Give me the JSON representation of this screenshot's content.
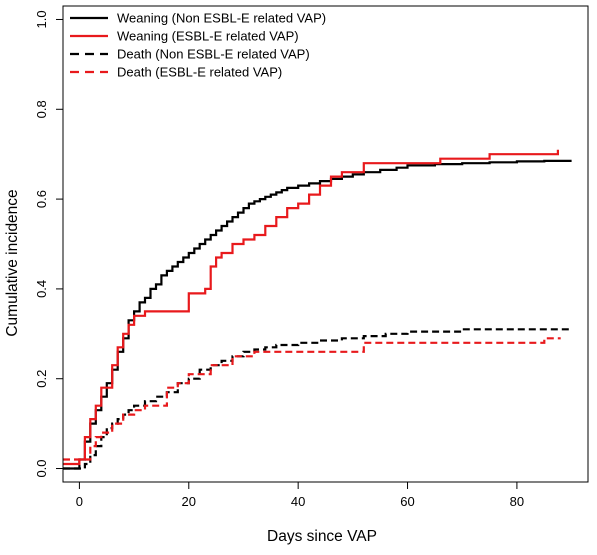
{
  "chart_data": {
    "type": "line",
    "title": "",
    "xlabel": "Days since VAP",
    "ylabel": "Cumulative incidence",
    "xlim": [
      -3,
      93
    ],
    "ylim": [
      -0.03,
      1.03
    ],
    "xticks": [
      0,
      20,
      40,
      60,
      80
    ],
    "yticks": [
      0.0,
      0.2,
      0.4,
      0.6,
      0.8,
      1.0
    ],
    "xtick_labels": [
      "0",
      "20",
      "40",
      "60",
      "80"
    ],
    "ytick_labels": [
      "0.0",
      "0.2",
      "0.4",
      "0.6",
      "0.8",
      "1.0"
    ],
    "grid": false,
    "legend_position": "top-left",
    "step": true,
    "series": [
      {
        "name": "Weaning (Non ESBL-E related VAP)",
        "color": "#000000",
        "dash": "solid",
        "x": [
          -3,
          0,
          1,
          2,
          3,
          4,
          5,
          6,
          7,
          8,
          9,
          10,
          11,
          12,
          13,
          14,
          15,
          16,
          17,
          18,
          19,
          20,
          21,
          22,
          23,
          24,
          25,
          26,
          27,
          28,
          29,
          30,
          31,
          32,
          33,
          34,
          35,
          36,
          37,
          38,
          40,
          42,
          44,
          46,
          48,
          50,
          52,
          55,
          58,
          60,
          65,
          70,
          75,
          80,
          85,
          90
        ],
        "y": [
          0.0,
          0.02,
          0.06,
          0.1,
          0.13,
          0.16,
          0.19,
          0.22,
          0.26,
          0.29,
          0.33,
          0.35,
          0.37,
          0.38,
          0.4,
          0.41,
          0.43,
          0.44,
          0.45,
          0.46,
          0.47,
          0.48,
          0.49,
          0.5,
          0.51,
          0.52,
          0.53,
          0.54,
          0.55,
          0.56,
          0.57,
          0.58,
          0.59,
          0.595,
          0.6,
          0.605,
          0.61,
          0.615,
          0.62,
          0.625,
          0.63,
          0.635,
          0.64,
          0.645,
          0.65,
          0.655,
          0.66,
          0.665,
          0.67,
          0.675,
          0.678,
          0.68,
          0.682,
          0.684,
          0.685,
          0.685
        ]
      },
      {
        "name": "Weaning (ESBL-E related VAP)",
        "color": "#e8191c",
        "dash": "solid",
        "x": [
          -3,
          0,
          1,
          2,
          3,
          4,
          6,
          7,
          8,
          9,
          10,
          12,
          14,
          16,
          18,
          20,
          22,
          23,
          24,
          25,
          26,
          28,
          30,
          32,
          34,
          36,
          38,
          40,
          42,
          44,
          46,
          48,
          52,
          58,
          66,
          75,
          80,
          87,
          87.5
        ],
        "y": [
          0.01,
          0.02,
          0.07,
          0.11,
          0.14,
          0.18,
          0.23,
          0.27,
          0.3,
          0.32,
          0.34,
          0.35,
          0.35,
          0.35,
          0.35,
          0.39,
          0.39,
          0.4,
          0.45,
          0.47,
          0.48,
          0.5,
          0.51,
          0.52,
          0.54,
          0.56,
          0.58,
          0.59,
          0.61,
          0.63,
          0.65,
          0.66,
          0.68,
          0.68,
          0.69,
          0.7,
          0.7,
          0.7,
          0.71
        ]
      },
      {
        "name": "Death (Non ESBL-E related VAP)",
        "color": "#000000",
        "dash": "dashed",
        "x": [
          -3,
          1,
          2,
          3,
          4,
          5,
          6,
          7,
          8,
          9,
          10,
          12,
          14,
          16,
          18,
          20,
          22,
          24,
          26,
          28,
          30,
          32,
          34,
          36,
          40,
          44,
          48,
          52,
          56,
          60,
          65,
          70,
          75,
          80,
          90
        ],
        "y": [
          0.0,
          0.01,
          0.03,
          0.05,
          0.07,
          0.09,
          0.1,
          0.11,
          0.12,
          0.13,
          0.14,
          0.15,
          0.16,
          0.17,
          0.19,
          0.2,
          0.22,
          0.23,
          0.24,
          0.25,
          0.26,
          0.265,
          0.27,
          0.275,
          0.28,
          0.285,
          0.29,
          0.295,
          0.3,
          0.305,
          0.305,
          0.31,
          0.31,
          0.31,
          0.31
        ]
      },
      {
        "name": "Death (ESBL-E related VAP)",
        "color": "#e8191c",
        "dash": "dashed",
        "x": [
          -3,
          0,
          2,
          3,
          4,
          6,
          8,
          10,
          12,
          14,
          16,
          18,
          20,
          22,
          24,
          26,
          28,
          30,
          32,
          36,
          40,
          44,
          48,
          52,
          56,
          60,
          70,
          80,
          85,
          88
        ],
        "y": [
          0.02,
          0.02,
          0.05,
          0.07,
          0.08,
          0.1,
          0.12,
          0.13,
          0.14,
          0.14,
          0.18,
          0.19,
          0.21,
          0.21,
          0.23,
          0.23,
          0.25,
          0.25,
          0.26,
          0.26,
          0.26,
          0.26,
          0.26,
          0.28,
          0.28,
          0.28,
          0.28,
          0.28,
          0.29,
          0.29
        ]
      }
    ]
  }
}
